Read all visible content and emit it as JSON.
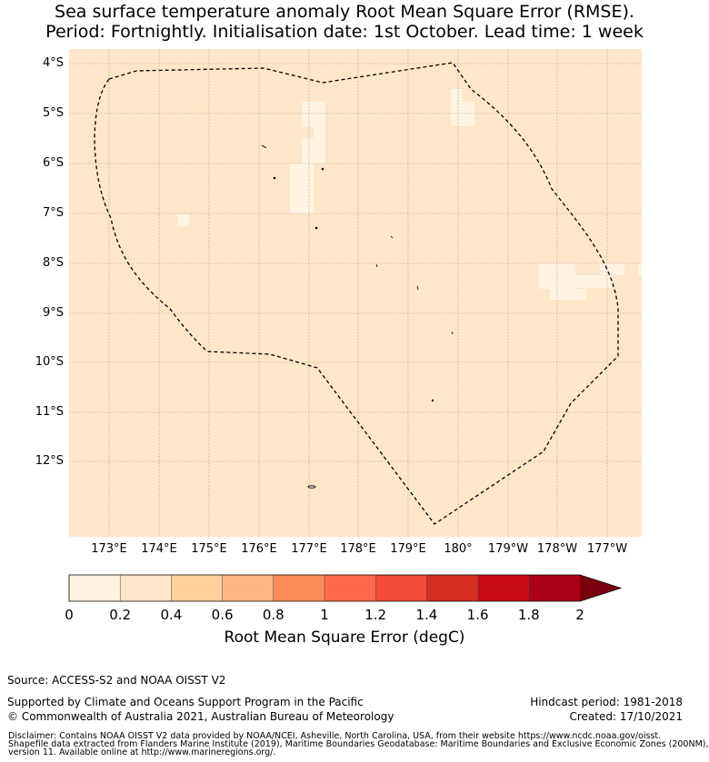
{
  "title": {
    "line1": "Sea surface temperature anomaly Root Mean Square Error (RMSE).",
    "line2": "Period: Fortnightly. Initialisation date: 1st October. Lead time: 1 week"
  },
  "map": {
    "lat_labels": [
      "4°S",
      "5°S",
      "6°S",
      "7°S",
      "8°S",
      "9°S",
      "10°S",
      "11°S",
      "12°S"
    ],
    "lon_labels": [
      "173°E",
      "174°E",
      "175°E",
      "176°E",
      "177°E",
      "178°E",
      "179°E",
      "180°",
      "179°W",
      "178°W",
      "177°W"
    ],
    "fill_color": "#fee6c8",
    "low_color": "#fff3e2",
    "boundary": "dashed",
    "gridlines": true
  },
  "colorbar": {
    "label": "Root Mean Square Error (degC)",
    "ticks": [
      "0",
      "0.2",
      "0.4",
      "0.6",
      "0.8",
      "1",
      "1.2",
      "1.4",
      "1.6",
      "1.8",
      "2"
    ],
    "colors": [
      "#fff3e2",
      "#fee6c8",
      "#fdd19e",
      "#fdb67f",
      "#fc8c59",
      "#fc6a4a",
      "#f44c38",
      "#d72f26",
      "#c70c16",
      "#ab0018"
    ],
    "extend_color": "#7a0010",
    "extend": "max"
  },
  "footer": {
    "source": "Source: ACCESS-S2 and NOAA OISST V2",
    "supported": "Supported by Climate and Oceans Support Program in the Pacific",
    "copyright": "© Commonwealth of Australia 2021, Australian Bureau of Meteorology",
    "hindcast": "Hindcast period: 1981-2018",
    "created": "Created: 17/10/2021",
    "disclaimer1": "Disclaimer: Contains NOAA OISST V2 data provided by NOAA/NCEI, Asheville, North Carolina, USA, from their website https://www.ncdc.noaa.gov/oisst.",
    "disclaimer2": "Shapefile data extracted from Flanders Marine Institute (2019), Maritime Boundaries Geodatabase: Maritime Boundaries and Exclusive Economic Zones (200NM),",
    "disclaimer3": "version 11. Available online at http://www.marineregions.org/."
  }
}
